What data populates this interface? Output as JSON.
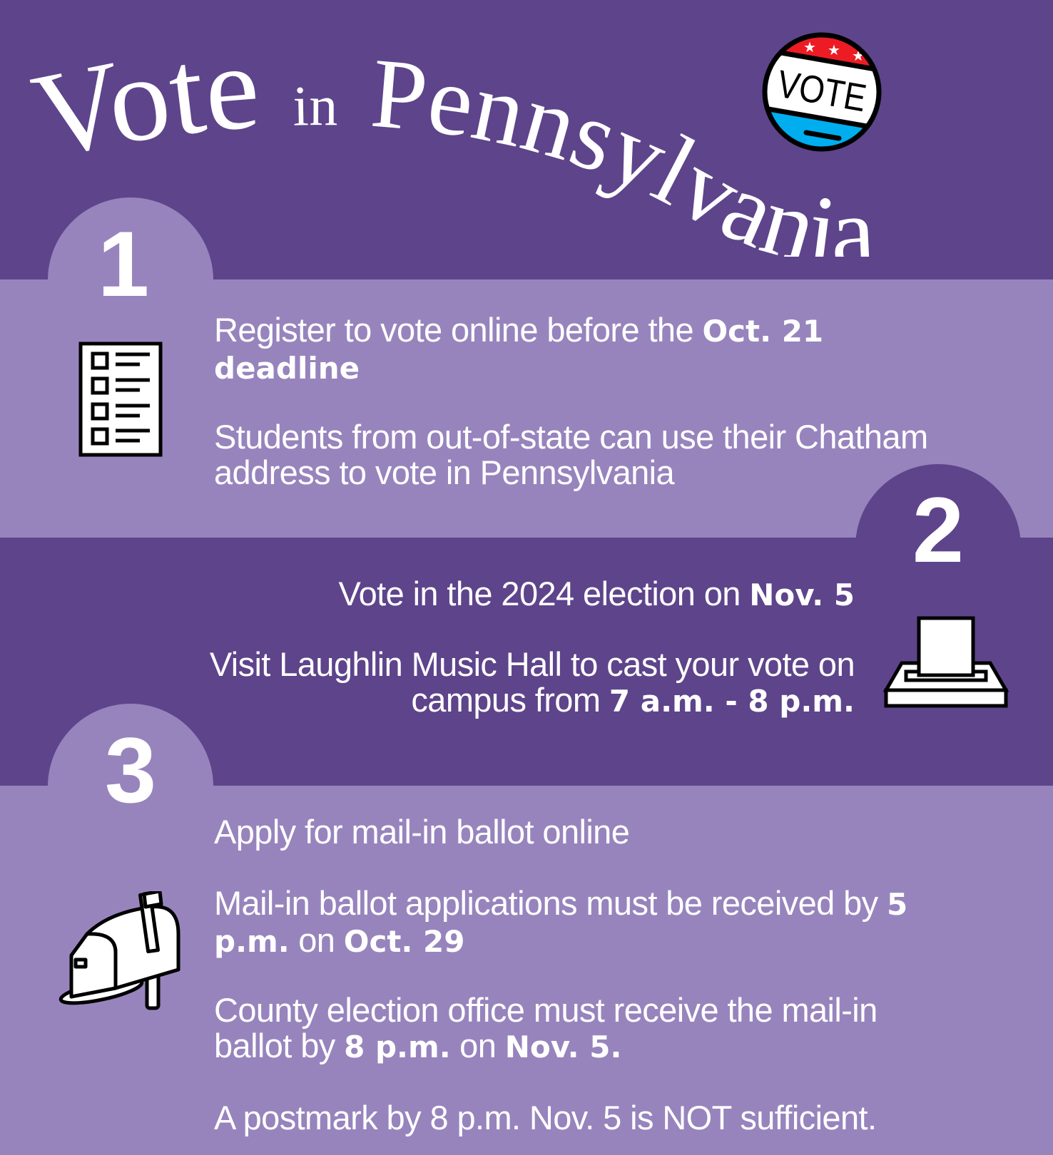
{
  "title": {
    "word1": "Vote",
    "word2": "in",
    "word3": "Pennsylvania"
  },
  "badge": {
    "label": "VOTE",
    "colors": {
      "red": "#ed1c24",
      "blue": "#00aeef",
      "white": "#ffffff",
      "outline": "#000000"
    }
  },
  "colors": {
    "dark_purple": "#5e448b",
    "light_purple": "#9784bd",
    "text": "#ffffff"
  },
  "steps": [
    {
      "number": "1",
      "icon": "checklist-icon",
      "lines": [
        {
          "plain": "Register to vote online before the ",
          "bold": "Oct. 21 deadline"
        },
        {
          "plain": "Students from out-of-state can use their Chatham address to vote in Pennsylvania"
        }
      ]
    },
    {
      "number": "2",
      "icon": "ballot-box-icon",
      "lines": [
        {
          "plain": "Vote in the 2024 election on ",
          "bold": "Nov. 5"
        },
        {
          "plain": "Visit Laughlin Music Hall to cast your vote on campus from ",
          "bold": "7 a.m. - 8 p.m."
        }
      ]
    },
    {
      "number": "3",
      "icon": "mailbox-icon",
      "lines": [
        {
          "plain": "Apply for mail-in ballot online"
        },
        {
          "plain": "Mail-in ballot applications must be received by ",
          "bold1": "5 p.m.",
          "mid": " on ",
          "bold2": "Oct. 29"
        },
        {
          "plain": "County election office must receive the mail-in ballot by ",
          "bold1": "8 p.m.",
          "mid": " on ",
          "bold2": "Nov. 5."
        },
        {
          "plain": "A postmark by 8 p.m. Nov. 5 is NOT sufficient."
        }
      ]
    }
  ]
}
